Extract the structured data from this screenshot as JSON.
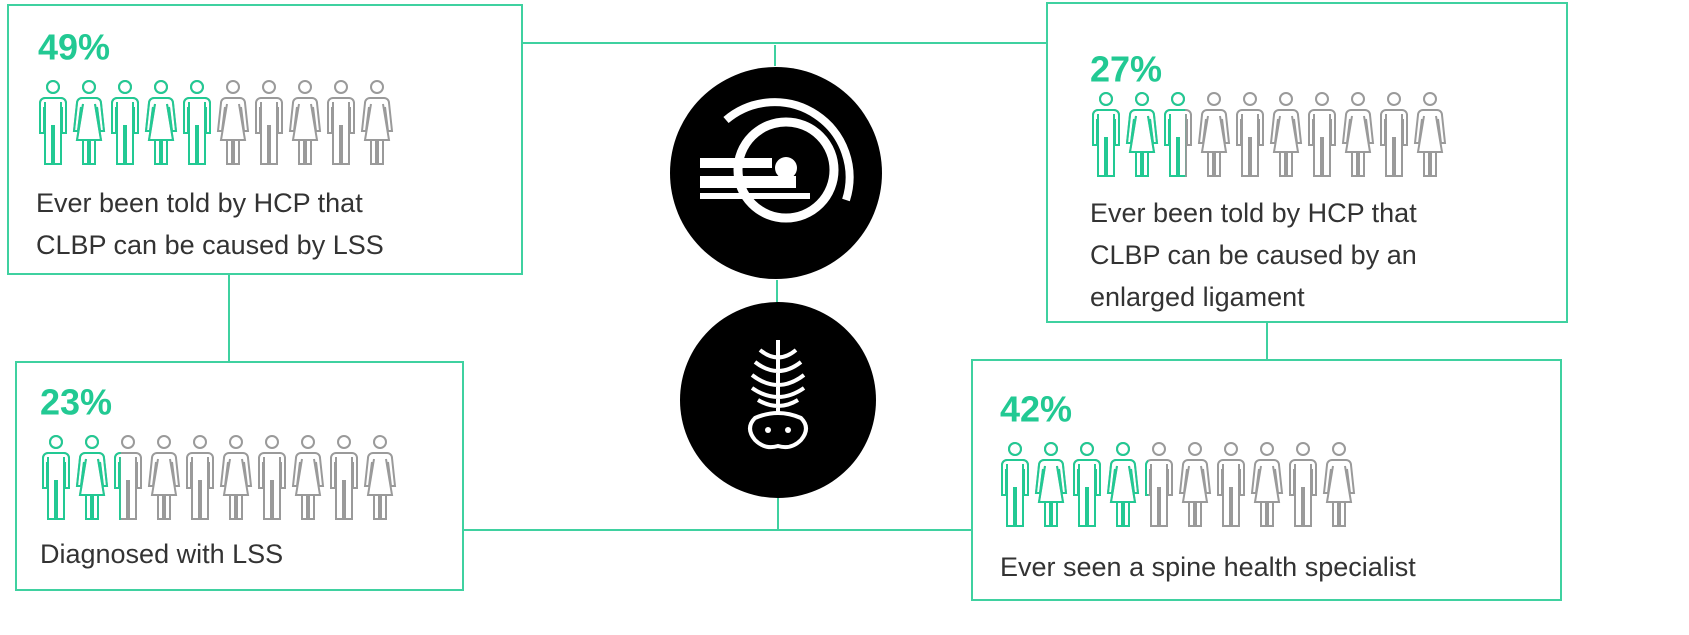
{
  "panels": [
    {
      "value": 49,
      "value_label": "49%",
      "lines": [
        "Ever been told by HCP that",
        "CLBP can be caused by LSS"
      ]
    },
    {
      "value": 27,
      "value_label": "27%",
      "lines": [
        "Ever been told by HCP that",
        "CLBP can be caused by an",
        "enlarged ligament"
      ]
    },
    {
      "value": 23,
      "value_label": "23%",
      "lines": [
        "Diagnosed with LSS"
      ]
    },
    {
      "value": 42,
      "value_label": "42%",
      "lines": [
        "Ever seen a spine health specialist"
      ]
    }
  ]
}
